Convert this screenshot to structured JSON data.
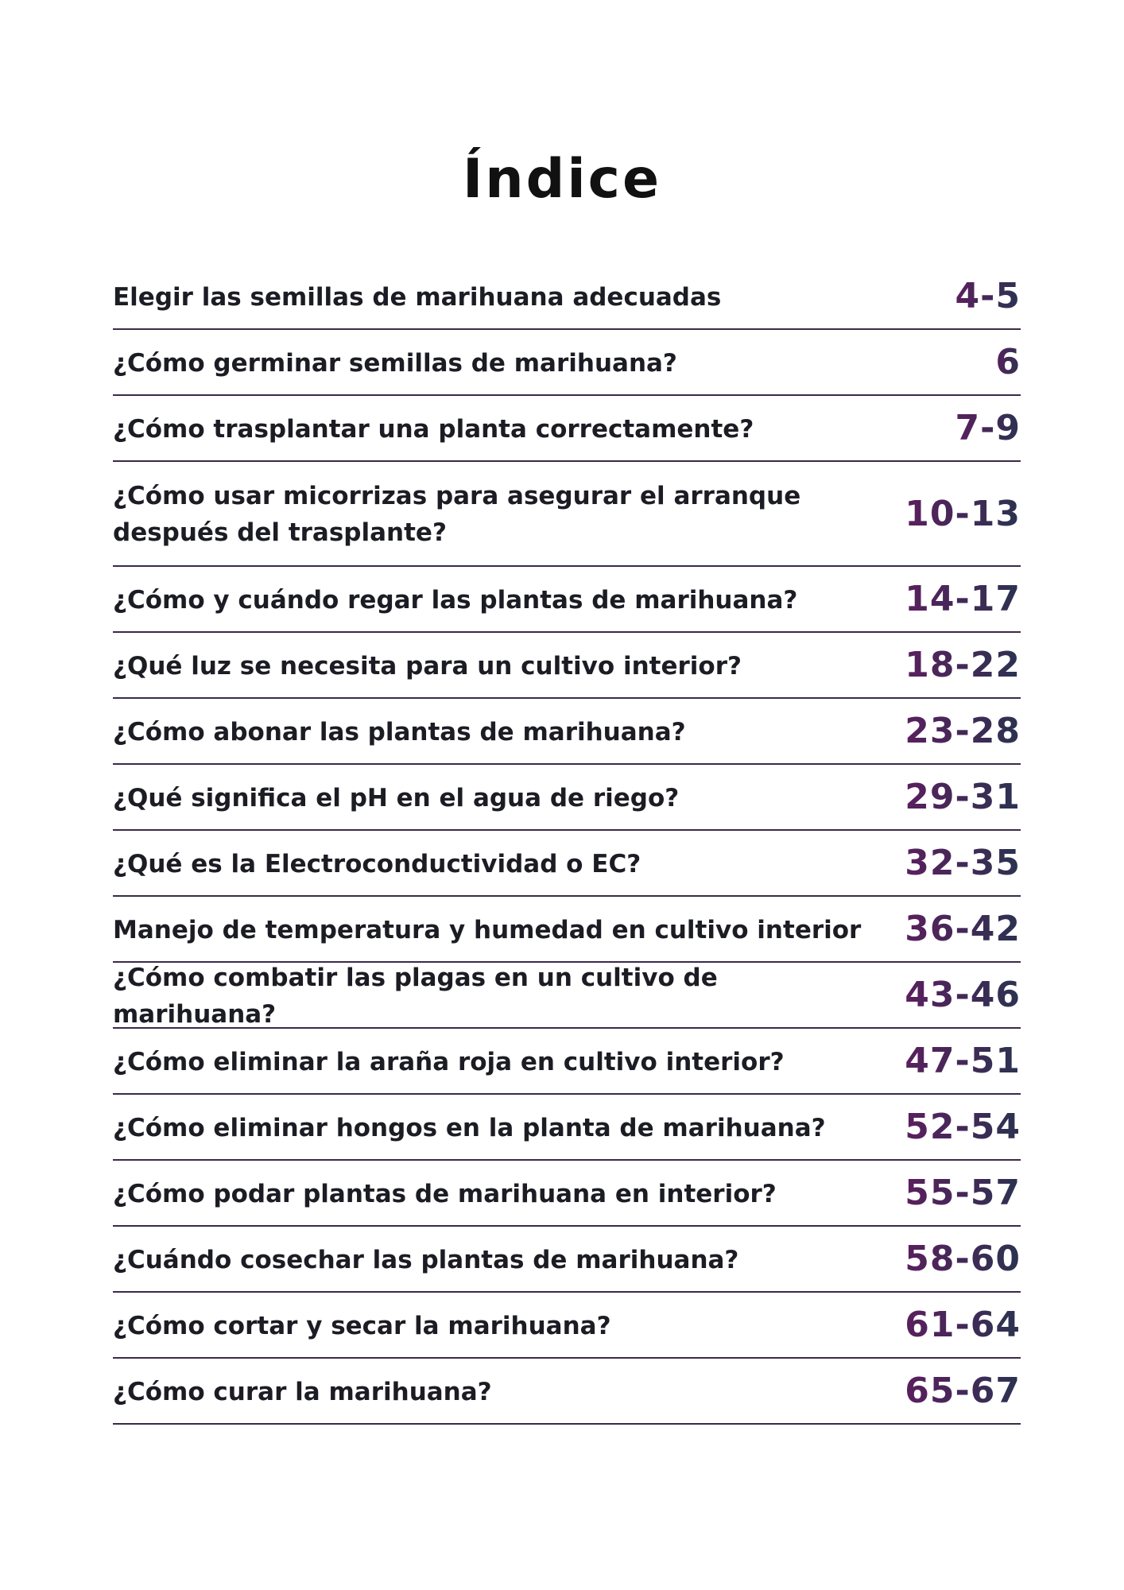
{
  "page": {
    "title": "Índice"
  },
  "toc": {
    "entries": [
      {
        "title": "Elegir las semillas de marihuana adecuadas",
        "pages": "4-5"
      },
      {
        "title": "¿Cómo germinar semillas de marihuana?",
        "pages": "6"
      },
      {
        "title": "¿Cómo trasplantar una planta correctamente?",
        "pages": "7-9"
      },
      {
        "title": "¿Cómo usar micorrizas para asegurar el arranque después del trasplante?",
        "pages": "10-13"
      },
      {
        "title": "¿Cómo y cuándo regar las plantas de marihuana?",
        "pages": "14-17"
      },
      {
        "title": "¿Qué luz se necesita para un cultivo interior?",
        "pages": "18-22"
      },
      {
        "title": "¿Cómo abonar las plantas de marihuana?",
        "pages": "23-28"
      },
      {
        "title": "¿Qué significa el pH en el agua de riego?",
        "pages": "29-31"
      },
      {
        "title": "¿Qué es la Electroconductividad o EC?",
        "pages": "32-35"
      },
      {
        "title": "Manejo de temperatura y humedad en cultivo interior",
        "pages": "36-42"
      },
      {
        "title": "¿Cómo combatir las plagas en un cultivo de marihuana?",
        "pages": "43-46"
      },
      {
        "title": "¿Cómo eliminar la araña roja en cultivo interior?",
        "pages": "47-51"
      },
      {
        "title": "¿Cómo eliminar hongos en la planta de marihuana?",
        "pages": "52-54"
      },
      {
        "title": "¿Cómo podar plantas de marihuana en interior?",
        "pages": "55-57"
      },
      {
        "title": "¿Cuándo cosechar las plantas de marihuana?",
        "pages": "58-60"
      },
      {
        "title": "¿Cómo cortar y secar la marihuana?",
        "pages": "61-64"
      },
      {
        "title": "¿Cómo curar la marihuana?",
        "pages": "65-67"
      }
    ]
  },
  "colors": {
    "page_number_start": "#5a1f5e",
    "page_number_end": "#2b3350",
    "divider": "#3a2a4a",
    "text": "#1c1c24"
  }
}
